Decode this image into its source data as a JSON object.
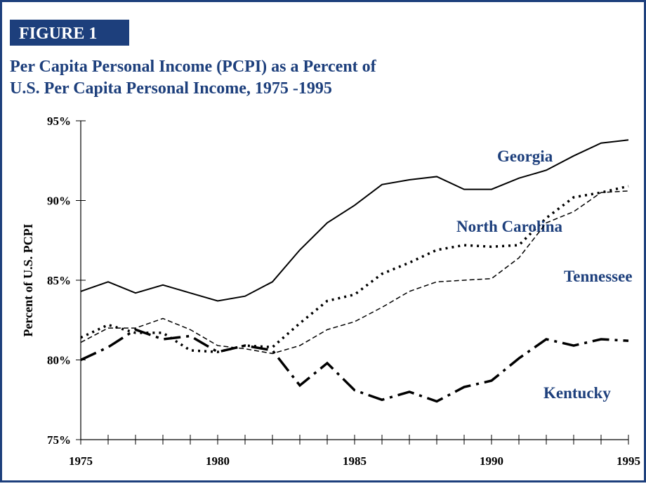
{
  "chart_data": {
    "type": "line",
    "figure_label": "FIGURE 1",
    "title_lines": [
      "Per Capita Personal Income (PCPI) as a Percent of",
      "U.S. Per Capita Personal Income, 1975 -1995"
    ],
    "ylabel": "Percent of U.S. PCPI",
    "x": [
      1975,
      1976,
      1977,
      1978,
      1979,
      1980,
      1981,
      1982,
      1983,
      1984,
      1985,
      1986,
      1987,
      1988,
      1989,
      1990,
      1991,
      1992,
      1993,
      1994,
      1995
    ],
    "xlim": [
      1975,
      1995
    ],
    "xticks": [
      1975,
      1980,
      1985,
      1990,
      1995
    ],
    "ylim": [
      75,
      95
    ],
    "yticks": [
      {
        "value": 75,
        "label": "75%"
      },
      {
        "value": 80,
        "label": "80%"
      },
      {
        "value": 85,
        "label": "85%"
      },
      {
        "value": 90,
        "label": "90%"
      },
      {
        "value": 95,
        "label": "95%"
      }
    ],
    "series": [
      {
        "name": "Georgia",
        "color": "#000000",
        "values": [
          84.3,
          84.9,
          84.2,
          84.7,
          84.2,
          83.7,
          84.0,
          84.9,
          86.9,
          88.6,
          89.7,
          91.0,
          91.3,
          91.5,
          90.7,
          90.7,
          91.4,
          91.9,
          92.8,
          93.6,
          93.8
        ]
      },
      {
        "name": "North Carolina",
        "color": "#000000",
        "values": [
          81.4,
          82.2,
          81.7,
          81.7,
          80.6,
          80.5,
          80.9,
          80.8,
          82.3,
          83.7,
          84.1,
          85.4,
          86.1,
          86.9,
          87.2,
          87.1,
          87.2,
          88.9,
          90.2,
          90.5,
          90.9
        ]
      },
      {
        "name": "Tennessee",
        "color": "#000000",
        "values": [
          81.1,
          82.0,
          82.0,
          82.6,
          81.9,
          80.9,
          80.7,
          80.4,
          80.9,
          81.9,
          82.4,
          83.3,
          84.3,
          84.9,
          85.0,
          85.1,
          86.4,
          88.6,
          89.3,
          90.5,
          90.6
        ]
      },
      {
        "name": "Kentucky",
        "color": "#000000",
        "values": [
          80.0,
          80.8,
          81.9,
          81.3,
          81.5,
          80.5,
          80.9,
          80.6,
          78.4,
          79.8,
          78.1,
          77.5,
          78.0,
          77.4,
          78.3,
          78.7,
          80.1,
          81.3,
          80.9,
          81.3,
          81.2
        ]
      }
    ]
  }
}
